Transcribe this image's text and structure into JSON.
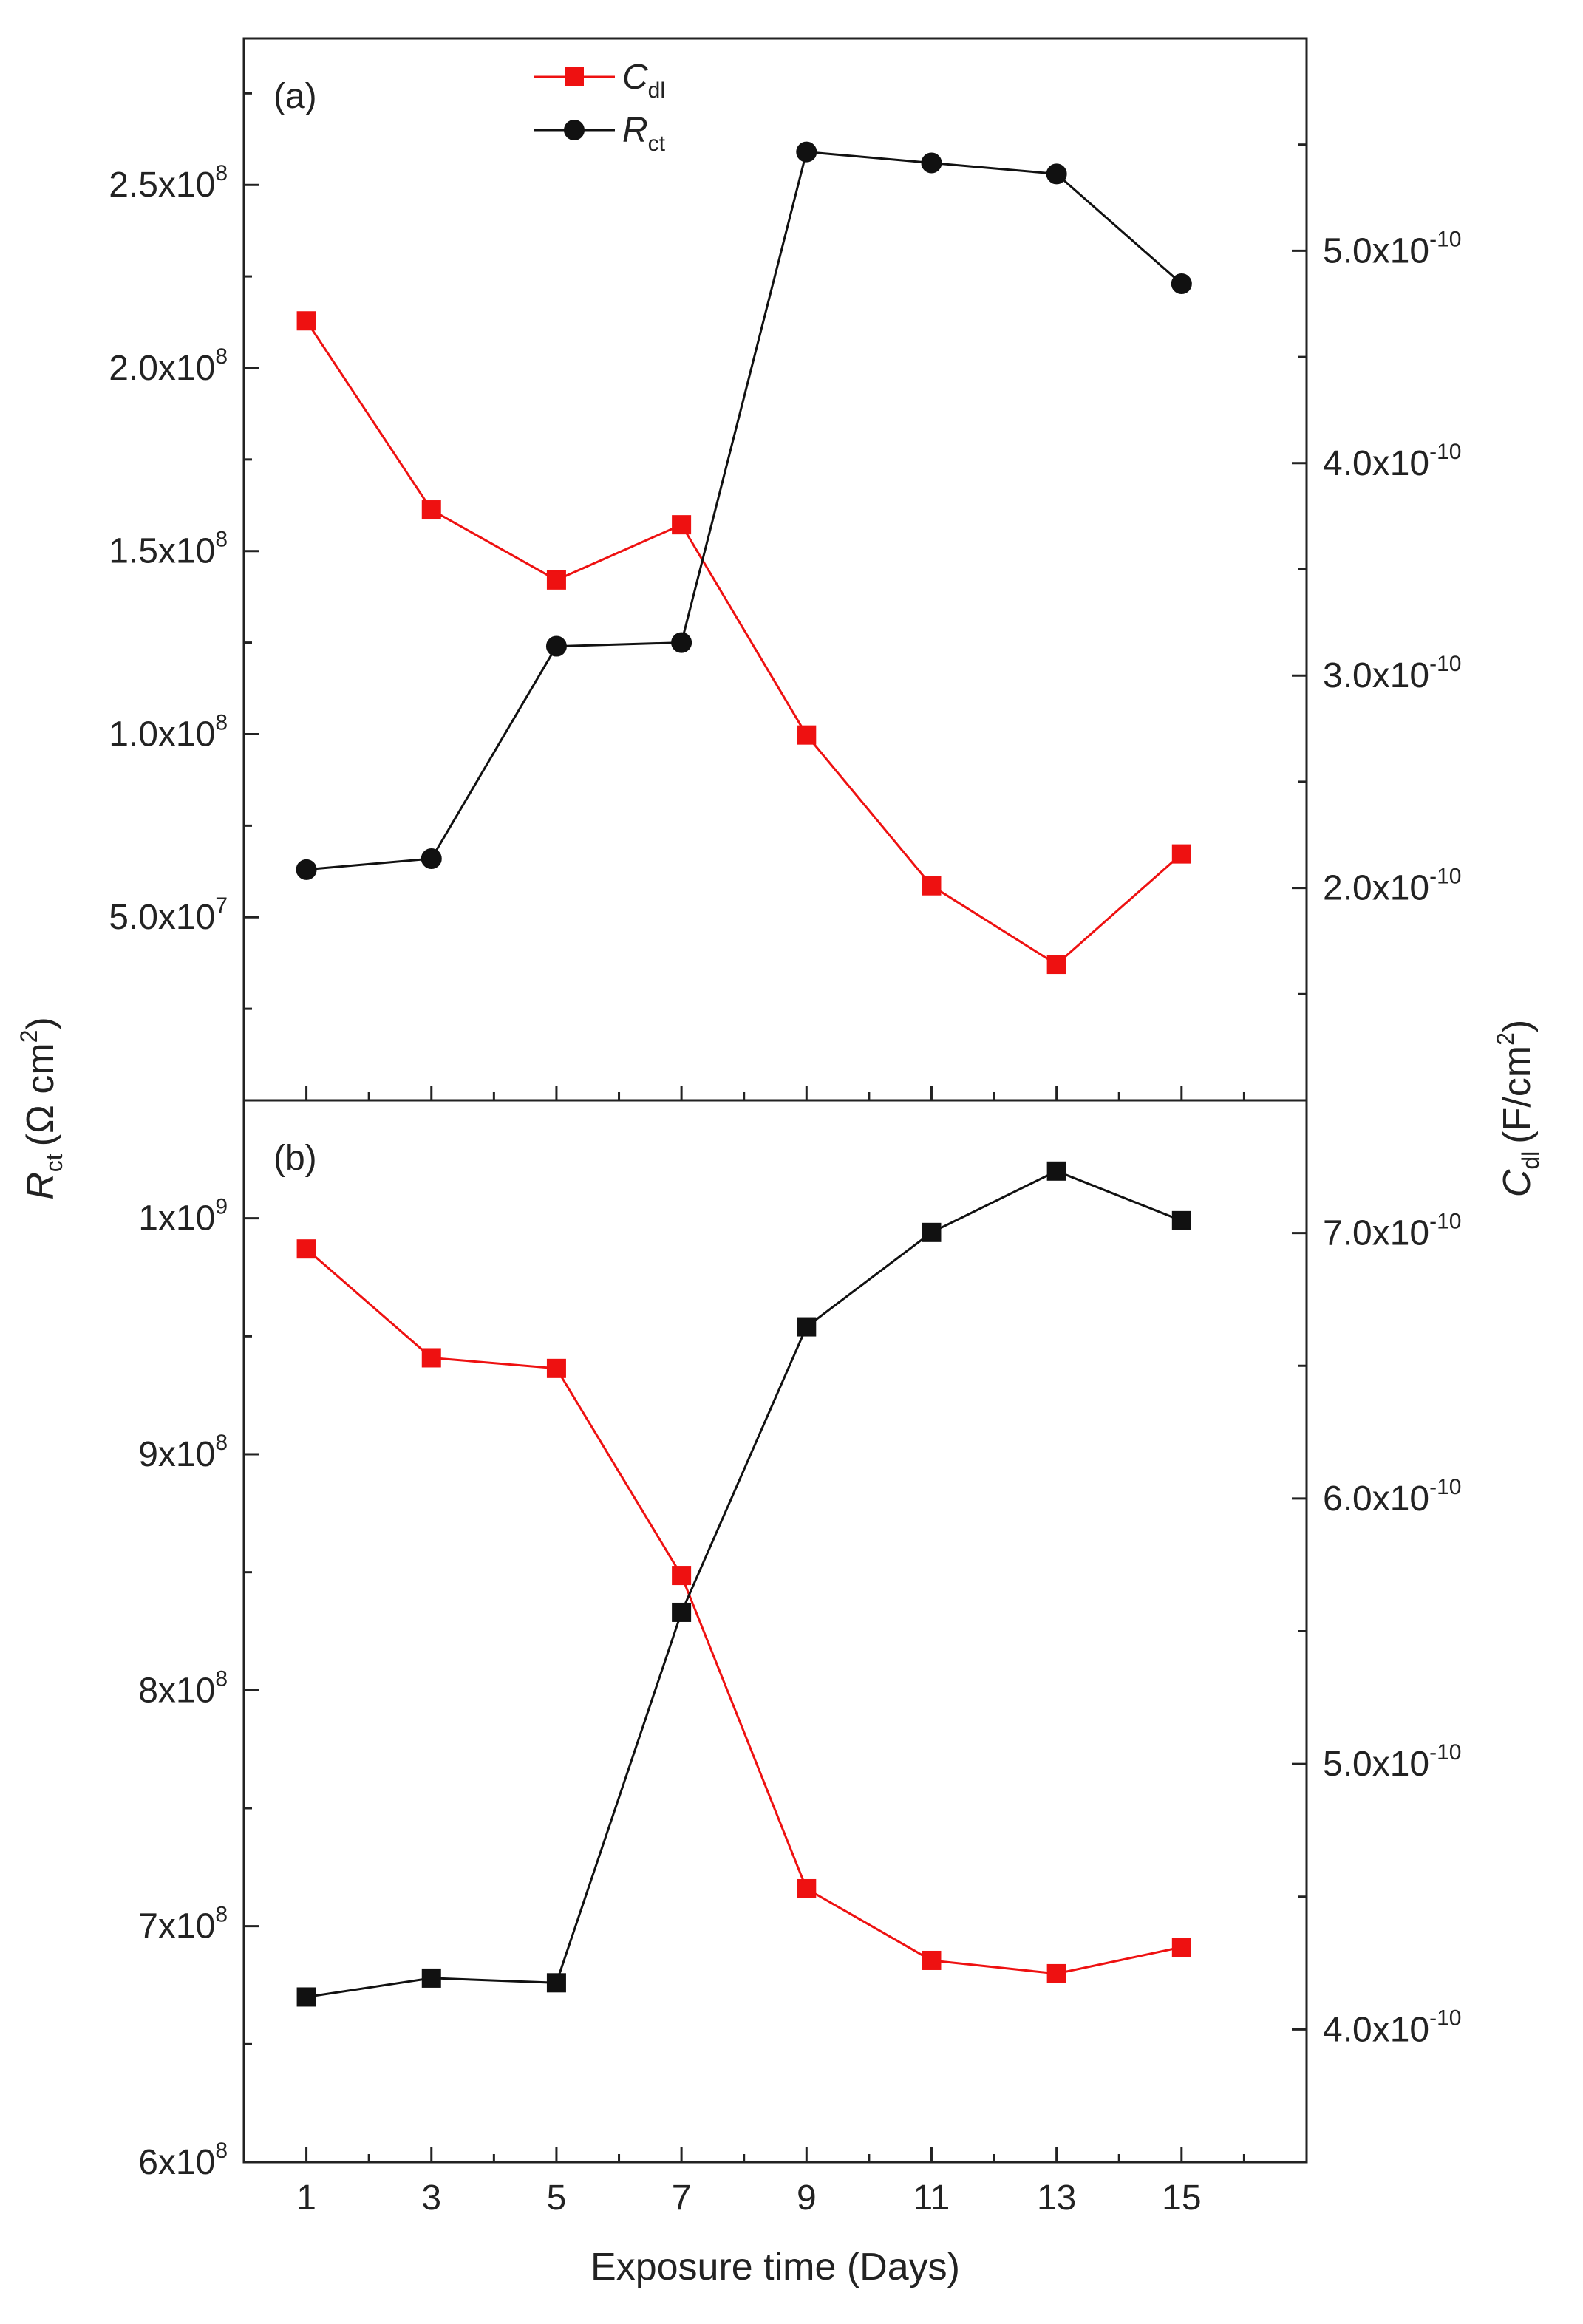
{
  "chart_data": {
    "type": "line",
    "xlabel": "Exposure time (Days)",
    "ylabel_left": {
      "symbol": "R",
      "sub": "ct",
      "unit": "(Ω cm",
      "unit_sup": "2",
      "unit_close": ")"
    },
    "ylabel_right": {
      "symbol": "C",
      "sub": "dl",
      "unit": "(F/cm",
      "unit_sup": "2",
      "unit_close": ")"
    },
    "x": [
      1,
      3,
      5,
      7,
      9,
      11,
      13,
      15
    ],
    "x_ticks": [
      "1",
      "3",
      "5",
      "7",
      "9",
      "11",
      "13",
      "15"
    ],
    "xlim": [
      0,
      17
    ],
    "legend": {
      "position": "top-center",
      "entries": [
        {
          "symbol": "C",
          "sub": "dl",
          "color": "#ee1111",
          "marker": "square"
        },
        {
          "symbol": "R",
          "sub": "ct",
          "color": "#111111",
          "marker": "circle"
        }
      ]
    },
    "panels": [
      {
        "label": "(a)",
        "left_axis": {
          "ylim": [
            0,
            290000000
          ],
          "major": [
            50000000,
            100000000,
            150000000,
            200000000,
            250000000
          ],
          "minor": [
            25000000,
            75000000,
            125000000,
            175000000,
            225000000,
            275000000
          ],
          "tick_labels": [
            {
              "mant": "5.0x10",
              "exp": "7"
            },
            {
              "mant": "1.0x10",
              "exp": "8"
            },
            {
              "mant": "1.5x10",
              "exp": "8"
            },
            {
              "mant": "2.0x10",
              "exp": "8"
            },
            {
              "mant": "2.5x10",
              "exp": "8"
            }
          ]
        },
        "right_axis": {
          "ylim": [
            1e-10,
            6e-10
          ],
          "major": [
            2e-10,
            3e-10,
            4e-10,
            5e-10
          ],
          "minor": [
            1.5e-10,
            2.5e-10,
            3.5e-10,
            4.5e-10,
            5.5e-10
          ],
          "tick_labels": [
            {
              "mant": "2.0x10",
              "exp": "-10"
            },
            {
              "mant": "3.0x10",
              "exp": "-10"
            },
            {
              "mant": "4.0x10",
              "exp": "-10"
            },
            {
              "mant": "5.0x10",
              "exp": "-10"
            }
          ]
        },
        "series": [
          {
            "name": "Cdl",
            "axis": "right",
            "color": "#ee1111",
            "marker": "square",
            "values": [
              4.67e-10,
              3.78e-10,
              3.45e-10,
              3.71e-10,
              2.72e-10,
              2.01e-10,
              1.64e-10,
              2.16e-10
            ]
          },
          {
            "name": "Rct",
            "axis": "left",
            "color": "#111111",
            "marker": "circle",
            "values": [
              63000000,
              66000000,
              124000000,
              125000000,
              259000000,
              256000000,
              253000000,
              223000000
            ]
          }
        ]
      },
      {
        "label": "(b)",
        "left_axis": {
          "ylim": [
            600000000,
            1050000000
          ],
          "major": [
            600000000,
            700000000,
            800000000,
            900000000,
            1000000000
          ],
          "minor": [
            650000000,
            750000000,
            850000000,
            950000000
          ],
          "tick_labels": [
            {
              "mant": "6x10",
              "exp": "8"
            },
            {
              "mant": "7x10",
              "exp": "8"
            },
            {
              "mant": "8x10",
              "exp": "8"
            },
            {
              "mant": "9x10",
              "exp": "8"
            },
            {
              "mant": "1x10",
              "exp": "9"
            }
          ]
        },
        "right_axis": {
          "ylim": [
            3.5e-10,
            7.5e-10
          ],
          "major": [
            4e-10,
            5e-10,
            6e-10,
            7e-10
          ],
          "minor": [
            4.5e-10,
            5.5e-10,
            6.5e-10
          ],
          "tick_labels": [
            {
              "mant": "4.0x10",
              "exp": "-10"
            },
            {
              "mant": "5.0x10",
              "exp": "-10"
            },
            {
              "mant": "6.0x10",
              "exp": "-10"
            },
            {
              "mant": "7.0x10",
              "exp": "-10"
            }
          ]
        },
        "series": [
          {
            "name": "Cdl",
            "axis": "right",
            "color": "#ee1111",
            "marker": "square",
            "values": [
              6.94e-10,
              6.53e-10,
              6.49e-10,
              5.71e-10,
              4.53e-10,
              4.26e-10,
              4.21e-10,
              4.31e-10
            ]
          },
          {
            "name": "Rct",
            "axis": "left",
            "color": "#111111",
            "marker": "square",
            "values": [
              670000000,
              678000000,
              676000000,
              833000000,
              954000000,
              994000000,
              1020000000,
              999000000
            ]
          }
        ]
      }
    ]
  }
}
